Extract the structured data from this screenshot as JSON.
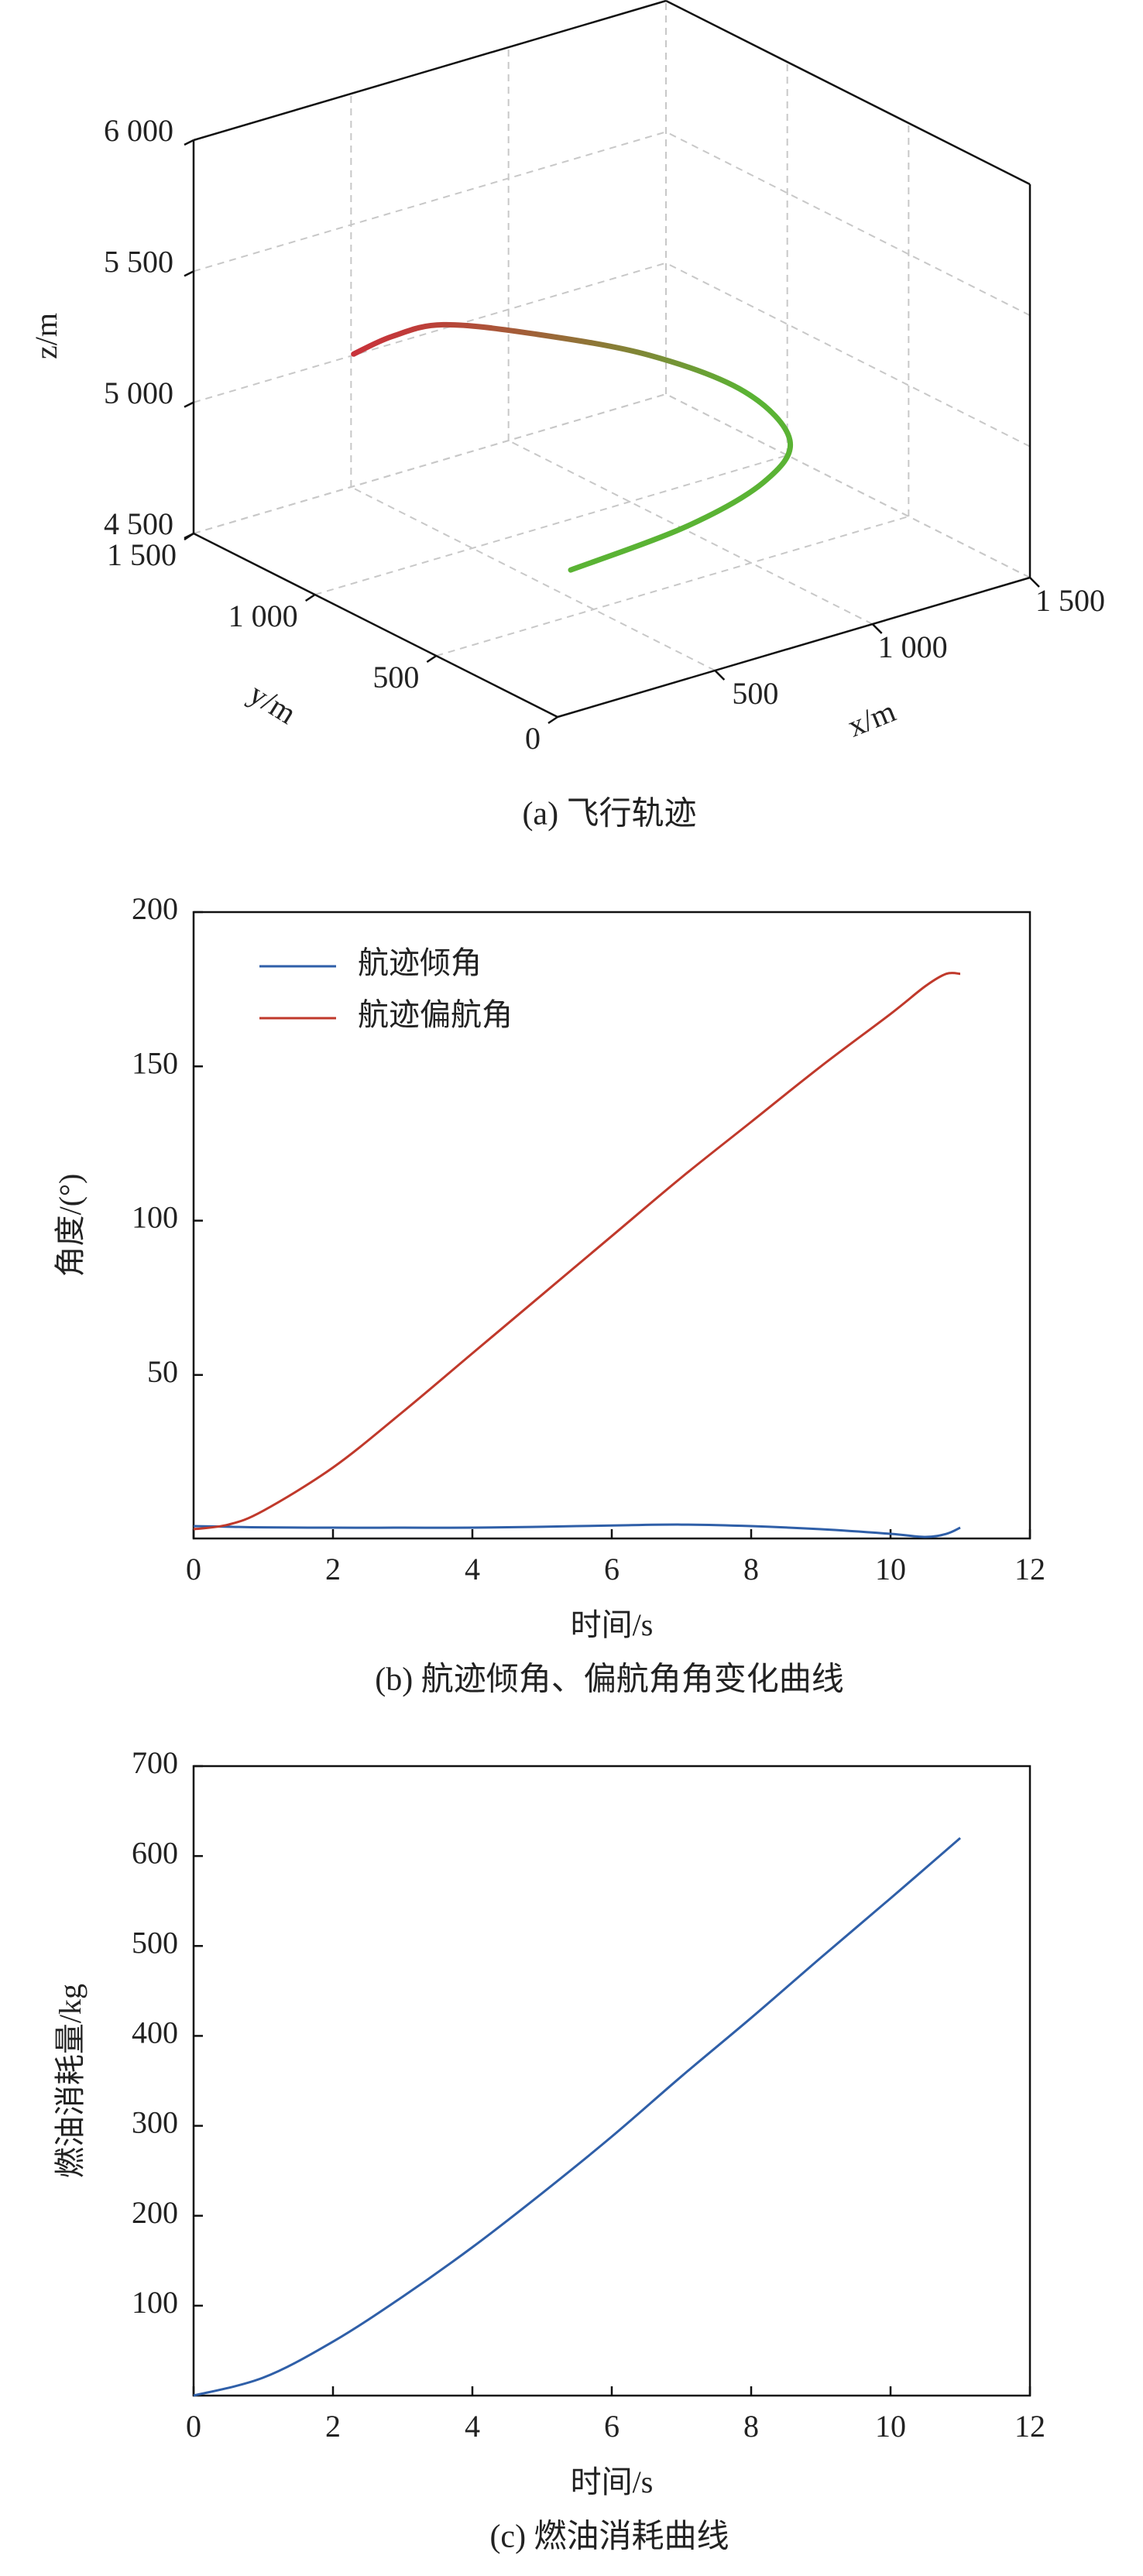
{
  "chart_data": [
    {
      "type": "line3d",
      "caption": "(a) 飞行轨迹",
      "xlabel": "x/m",
      "ylabel": "y/m",
      "zlabel": "z/m",
      "x": [
        350,
        700,
        1000,
        1200,
        1250,
        1100,
        850,
        600,
        400,
        200
      ],
      "y": [
        400,
        380,
        450,
        600,
        850,
        1050,
        1200,
        1250,
        1200,
        1100
      ],
      "z": [
        4750,
        4800,
        4830,
        4850,
        4900,
        5000,
        5100,
        5200,
        5250,
        5300
      ],
      "colors": [
        "#5ab334",
        "#c8323a"
      ],
      "xlim": [
        0,
        1500
      ],
      "ylim": [
        0,
        1500
      ],
      "zlim": [
        4500,
        6000
      ],
      "xticks": [
        500,
        {
          "value": 1000,
          "label": "1 000"
        },
        {
          "value": 1500,
          "label": "1 500"
        }
      ],
      "yticks": [
        0,
        500,
        {
          "value": 1000,
          "label": "1 000"
        },
        {
          "value": 1500,
          "label": "1 500"
        }
      ],
      "zticks": [
        {
          "value": 4500,
          "label": "4 500"
        },
        {
          "value": 5000,
          "label": "5 000"
        },
        {
          "value": 5500,
          "label": "5 500"
        },
        {
          "value": 6000,
          "label": "6 000"
        }
      ],
      "grid": true
    },
    {
      "type": "line",
      "caption": "(b) 航迹倾角、偏航角角变化曲线",
      "xlabel": "时间/s",
      "ylabel": "角度/(°)",
      "x": [
        0,
        0.5,
        1,
        2,
        3,
        4,
        5,
        6,
        7,
        8,
        9,
        10,
        10.5,
        10.8,
        11
      ],
      "series": [
        {
          "name": "航迹倾角",
          "color": "#2f5fa8",
          "values": [
            1,
            0.8,
            0.6,
            0.5,
            0.5,
            0.5,
            0.8,
            1.2,
            1.5,
            1,
            0,
            -1.5,
            -2.5,
            -1.5,
            0.5
          ]
        },
        {
          "name": "航迹偏航角",
          "color": "#c0392b",
          "values": [
            0,
            1.5,
            6,
            20,
            38,
            57,
            76,
            95,
            114,
            132,
            150,
            167,
            176,
            180,
            180
          ]
        }
      ],
      "xlim": [
        0,
        12
      ],
      "ylim": [
        -3,
        200
      ],
      "xticks": [
        0,
        2,
        4,
        6,
        8,
        10,
        12
      ],
      "yticks": [
        50,
        100,
        150,
        200
      ],
      "legend": "top-left",
      "grid": false
    },
    {
      "type": "line",
      "caption": "(c) 燃油消耗曲线",
      "xlabel": "时间/s",
      "ylabel": "燃油消耗量/kg",
      "x": [
        0,
        1,
        2,
        3,
        4,
        5,
        6,
        7,
        8,
        9,
        10,
        11
      ],
      "series": [
        {
          "name": "燃油消耗量",
          "color": "#2f5fa8",
          "values": [
            0,
            20,
            60,
            110,
            165,
            225,
            288,
            355,
            420,
            487,
            553,
            620
          ]
        }
      ],
      "xlim": [
        0,
        12
      ],
      "ylim": [
        0,
        700
      ],
      "xticks": [
        0,
        2,
        4,
        6,
        8,
        10,
        12
      ],
      "yticks": [
        100,
        200,
        300,
        400,
        500,
        600,
        700
      ],
      "grid": false
    }
  ]
}
